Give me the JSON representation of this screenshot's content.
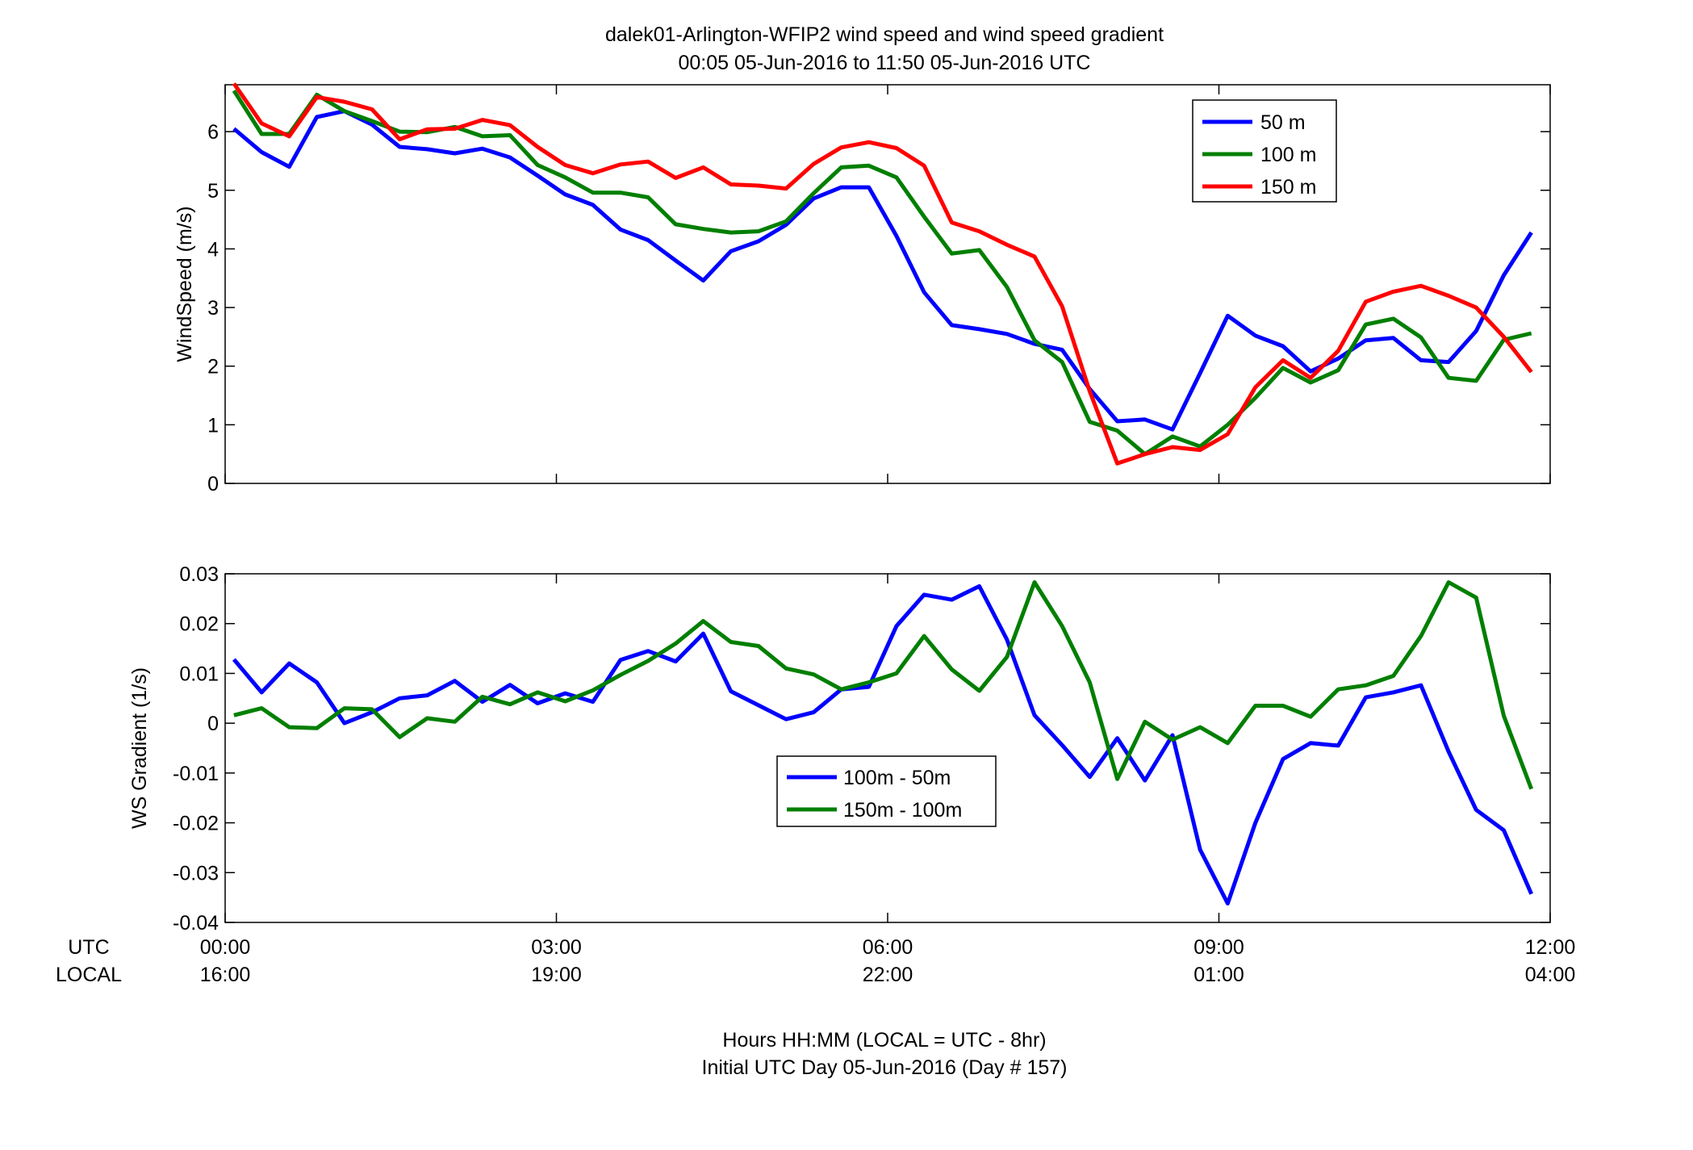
{
  "title_line1": "dalek01-Arlington-WFIP2  wind speed and wind speed gradient",
  "title_line2": "00:05 05-Jun-2016 to 11:50 05-Jun-2016  UTC",
  "xaxis": {
    "row_label_utc": "UTC",
    "row_label_local": "LOCAL",
    "ticks_utc": [
      "00:00",
      "03:00",
      "06:00",
      "09:00",
      "12:00"
    ],
    "ticks_local": [
      "16:00",
      "19:00",
      "22:00",
      "01:00",
      "04:00"
    ],
    "tick_hours": [
      0,
      3,
      6,
      9,
      12
    ],
    "xlabel_line1": "Hours HH:MM  (LOCAL = UTC - 8hr)",
    "xlabel_line2": "Initial UTC Day 05-Jun-2016 (Day # 157)"
  },
  "chart_data": [
    {
      "type": "line",
      "ylabel": "WindSpeed (m/s)",
      "xlim": [
        0,
        12
      ],
      "ylim": [
        0,
        6.8
      ],
      "yticks": [
        0,
        1,
        2,
        3,
        4,
        5,
        6
      ],
      "ytick_labels": [
        "0",
        "1",
        "2",
        "3",
        "4",
        "5",
        "6"
      ],
      "legend_position": "top-right",
      "x": [
        0.08,
        0.33,
        0.58,
        0.83,
        1.08,
        1.33,
        1.58,
        1.83,
        2.08,
        2.33,
        2.58,
        2.83,
        3.08,
        3.33,
        3.58,
        3.83,
        4.08,
        4.33,
        4.58,
        4.83,
        5.08,
        5.33,
        5.58,
        5.83,
        6.08,
        6.33,
        6.58,
        6.83,
        7.08,
        7.33,
        7.58,
        7.83,
        8.08,
        8.33,
        8.58,
        8.83,
        9.08,
        9.33,
        9.58,
        9.83,
        10.08,
        10.33,
        10.58,
        10.83,
        11.08,
        11.33,
        11.58,
        11.83
      ],
      "series": [
        {
          "name": "50 m",
          "color": "#0000ff",
          "values": [
            6.05,
            5.65,
            5.4,
            6.25,
            6.35,
            6.12,
            5.74,
            5.7,
            5.63,
            5.71,
            5.56,
            5.25,
            4.93,
            4.75,
            4.33,
            4.15,
            3.8,
            3.46,
            3.96,
            4.13,
            4.41,
            4.86,
            5.05,
            5.05,
            4.22,
            3.26,
            2.7,
            2.63,
            2.55,
            2.38,
            2.28,
            1.61,
            1.06,
            1.09,
            0.92,
            1.88,
            2.86,
            2.52,
            2.34,
            1.91,
            2.13,
            2.44,
            2.48,
            2.1,
            2.07,
            2.6,
            3.55,
            4.28
          ]
        },
        {
          "name": "100 m",
          "color": "#007f00",
          "values": [
            6.7,
            5.96,
            5.96,
            6.63,
            6.35,
            6.18,
            6.0,
            5.99,
            6.08,
            5.92,
            5.94,
            5.43,
            5.22,
            4.96,
            4.96,
            4.88,
            4.42,
            4.34,
            4.28,
            4.3,
            4.47,
            4.95,
            5.39,
            5.42,
            5.22,
            4.55,
            3.92,
            3.98,
            3.35,
            2.44,
            2.07,
            1.05,
            0.9,
            0.5,
            0.8,
            0.63,
            1.0,
            1.46,
            1.97,
            1.72,
            1.93,
            2.71,
            2.81,
            2.49,
            1.8,
            1.75,
            2.45,
            2.56
          ]
        },
        {
          "name": "150 m",
          "color": "#ff0000",
          "values": [
            6.82,
            6.14,
            5.92,
            6.59,
            6.51,
            6.38,
            5.87,
            6.04,
            6.05,
            6.2,
            6.11,
            5.74,
            5.43,
            5.29,
            5.44,
            5.49,
            5.21,
            5.39,
            5.1,
            5.08,
            5.03,
            5.45,
            5.73,
            5.82,
            5.72,
            5.42,
            4.45,
            4.3,
            4.07,
            3.87,
            3.02,
            1.57,
            0.34,
            0.5,
            0.62,
            0.57,
            0.84,
            1.64,
            2.1,
            1.8,
            2.26,
            3.1,
            3.27,
            3.37,
            3.2,
            3.0,
            2.5,
            1.9
          ]
        }
      ]
    },
    {
      "type": "line",
      "ylabel": "WS Gradient (1/s)",
      "xlim": [
        0,
        12
      ],
      "ylim": [
        -0.04,
        0.03
      ],
      "yticks": [
        -0.04,
        -0.03,
        -0.02,
        -0.01,
        0,
        0.01,
        0.02,
        0.03
      ],
      "ytick_labels": [
        "-0.04",
        "-0.03",
        "-0.02",
        "-0.01",
        "0",
        "0.01",
        "0.02",
        "0.03"
      ],
      "legend_position": "center",
      "x": [
        0.08,
        0.33,
        0.58,
        0.83,
        1.08,
        1.33,
        1.58,
        1.83,
        2.08,
        2.33,
        2.58,
        2.83,
        3.08,
        3.33,
        3.58,
        3.83,
        4.08,
        4.33,
        4.58,
        4.83,
        5.08,
        5.33,
        5.58,
        5.83,
        6.08,
        6.33,
        6.58,
        6.83,
        7.08,
        7.33,
        7.58,
        7.83,
        8.08,
        8.33,
        8.58,
        8.83,
        9.08,
        9.33,
        9.58,
        9.83,
        10.08,
        10.33,
        10.58,
        10.83,
        11.08,
        11.33,
        11.58,
        11.83
      ],
      "series": [
        {
          "name": "100m - 50m",
          "color": "#0000ff",
          "values": [
            0.0128,
            0.0062,
            0.012,
            0.0082,
            0.0,
            0.0022,
            0.005,
            0.0056,
            0.0085,
            0.0043,
            0.0077,
            0.004,
            0.006,
            0.0043,
            0.0127,
            0.0145,
            0.0124,
            0.018,
            0.0064,
            0.0036,
            0.0008,
            0.0022,
            0.0068,
            0.0073,
            0.0195,
            0.0258,
            0.0248,
            0.0275,
            0.0168,
            0.0016,
            -0.0044,
            -0.0108,
            -0.003,
            -0.0115,
            -0.0024,
            -0.0254,
            -0.0362,
            -0.02,
            -0.0072,
            -0.004,
            -0.0045,
            0.0052,
            0.0062,
            0.0076,
            -0.0057,
            -0.0174,
            -0.0215,
            -0.0343
          ]
        },
        {
          "name": "150m - 100m",
          "color": "#007f00",
          "values": [
            0.0016,
            0.003,
            -0.0008,
            -0.001,
            0.003,
            0.0028,
            -0.0028,
            0.001,
            0.0003,
            0.0053,
            0.0038,
            0.0062,
            0.0044,
            0.0066,
            0.0097,
            0.0125,
            0.016,
            0.0205,
            0.0163,
            0.0155,
            0.011,
            0.0098,
            0.0068,
            0.0082,
            0.01,
            0.0175,
            0.0108,
            0.0065,
            0.0133,
            0.0283,
            0.0195,
            0.0082,
            -0.0112,
            0.0003,
            -0.0033,
            -0.0008,
            -0.004,
            0.0035,
            0.0035,
            0.0013,
            0.0068,
            0.0076,
            0.0095,
            0.0175,
            0.0283,
            0.0252,
            0.0015,
            -0.0132
          ]
        }
      ]
    }
  ]
}
